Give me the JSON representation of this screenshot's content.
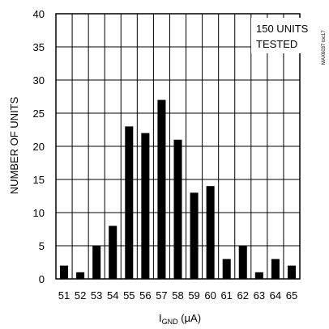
{
  "chart_data": {
    "type": "bar",
    "title": "",
    "xlabel": {
      "main": "I",
      "sub": "GND",
      "unit": " (μA)"
    },
    "ylabel": "NUMBER OF UNITS",
    "categories": [
      "51",
      "52",
      "53",
      "54",
      "55",
      "56",
      "57",
      "58",
      "59",
      "60",
      "61",
      "62",
      "63",
      "64",
      "65"
    ],
    "values": [
      2,
      1,
      5,
      8,
      23,
      22,
      27,
      21,
      13,
      14,
      3,
      5,
      1,
      3,
      2
    ],
    "ylim": [
      0,
      40
    ],
    "yticks": [
      "0",
      "5",
      "10",
      "15",
      "20",
      "25",
      "30",
      "35",
      "40"
    ],
    "grid": true,
    "bar_color": "#000000",
    "annotation": [
      "150 UNITS",
      "TESTED"
    ],
    "watermark": "MAX6037 toc17"
  }
}
